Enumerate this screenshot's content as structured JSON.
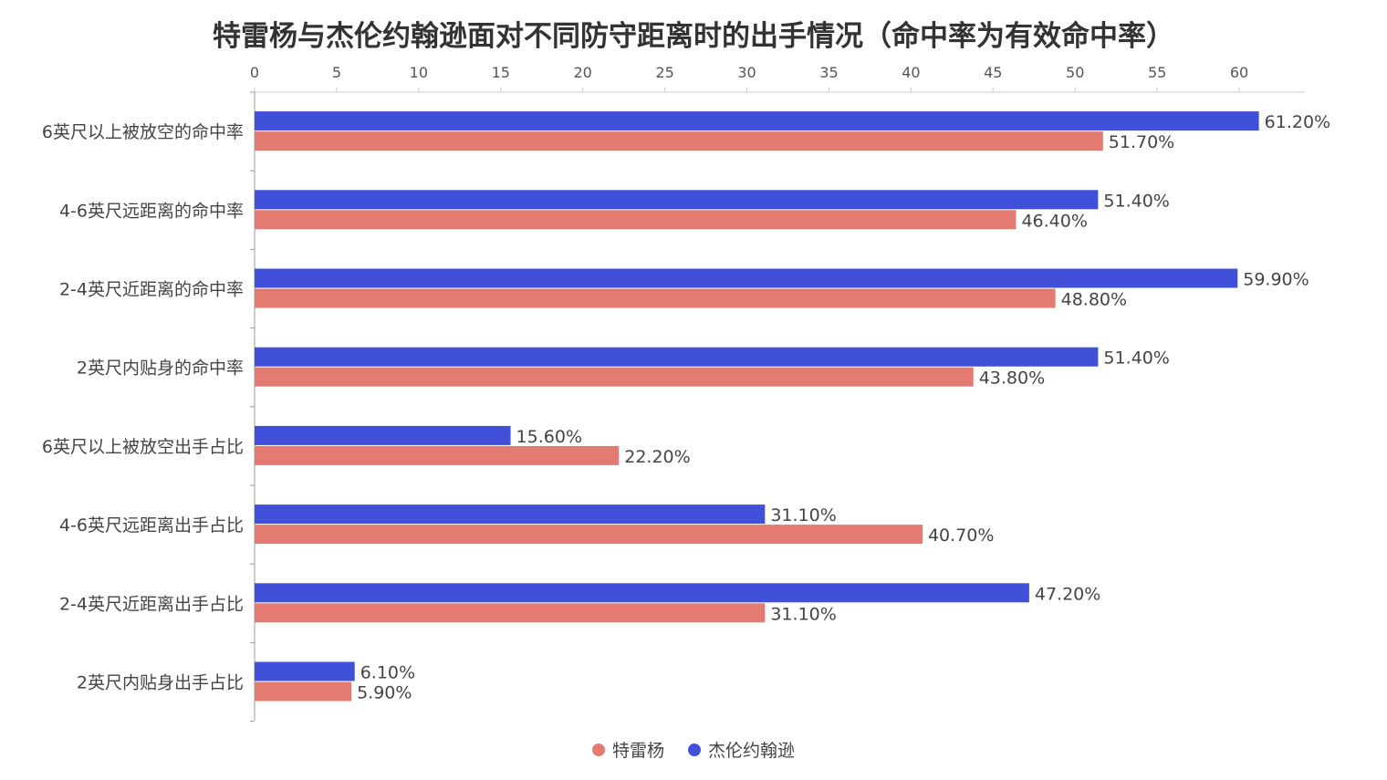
{
  "chart_data": {
    "type": "bar",
    "orientation": "horizontal",
    "title": "特雷杨与杰伦约翰逊面对不同防守距离时的出手情况（命中率为有效命中率）",
    "xlim": [
      0,
      64
    ],
    "x_ticks": [
      "0",
      "5",
      "10",
      "15",
      "20",
      "25",
      "30",
      "35",
      "40",
      "45",
      "50",
      "55",
      "60"
    ],
    "categories": [
      "6英尺以上被放空的命中率",
      "4-6英尺远距离的命中率",
      "2-4英尺近距离的命中率",
      "2英尺内贴身的命中率",
      "6英尺以上被放空出手占比",
      "4-6英尺远距离出手占比",
      "2-4英尺近距离出手占比",
      "2英尺内贴身出手占比"
    ],
    "series": [
      {
        "name": "杰伦约翰逊",
        "color": "#4150d8",
        "values": [
          61.2,
          51.4,
          59.9,
          51.4,
          15.6,
          31.1,
          47.2,
          6.1
        ],
        "labels": [
          "61.20%",
          "51.40%",
          "59.90%",
          "51.40%",
          "15.60%",
          "31.10%",
          "47.20%",
          "6.10%"
        ]
      },
      {
        "name": "特雷杨",
        "color": "#e37b73",
        "values": [
          51.7,
          46.4,
          48.8,
          43.8,
          22.2,
          40.7,
          31.1,
          5.9
        ],
        "labels": [
          "51.70%",
          "46.40%",
          "48.80%",
          "43.80%",
          "22.20%",
          "40.70%",
          "31.10%",
          "5.90%"
        ]
      }
    ],
    "legend": {
      "position": "bottom",
      "order": [
        "特雷杨",
        "杰伦约翰逊"
      ]
    }
  }
}
